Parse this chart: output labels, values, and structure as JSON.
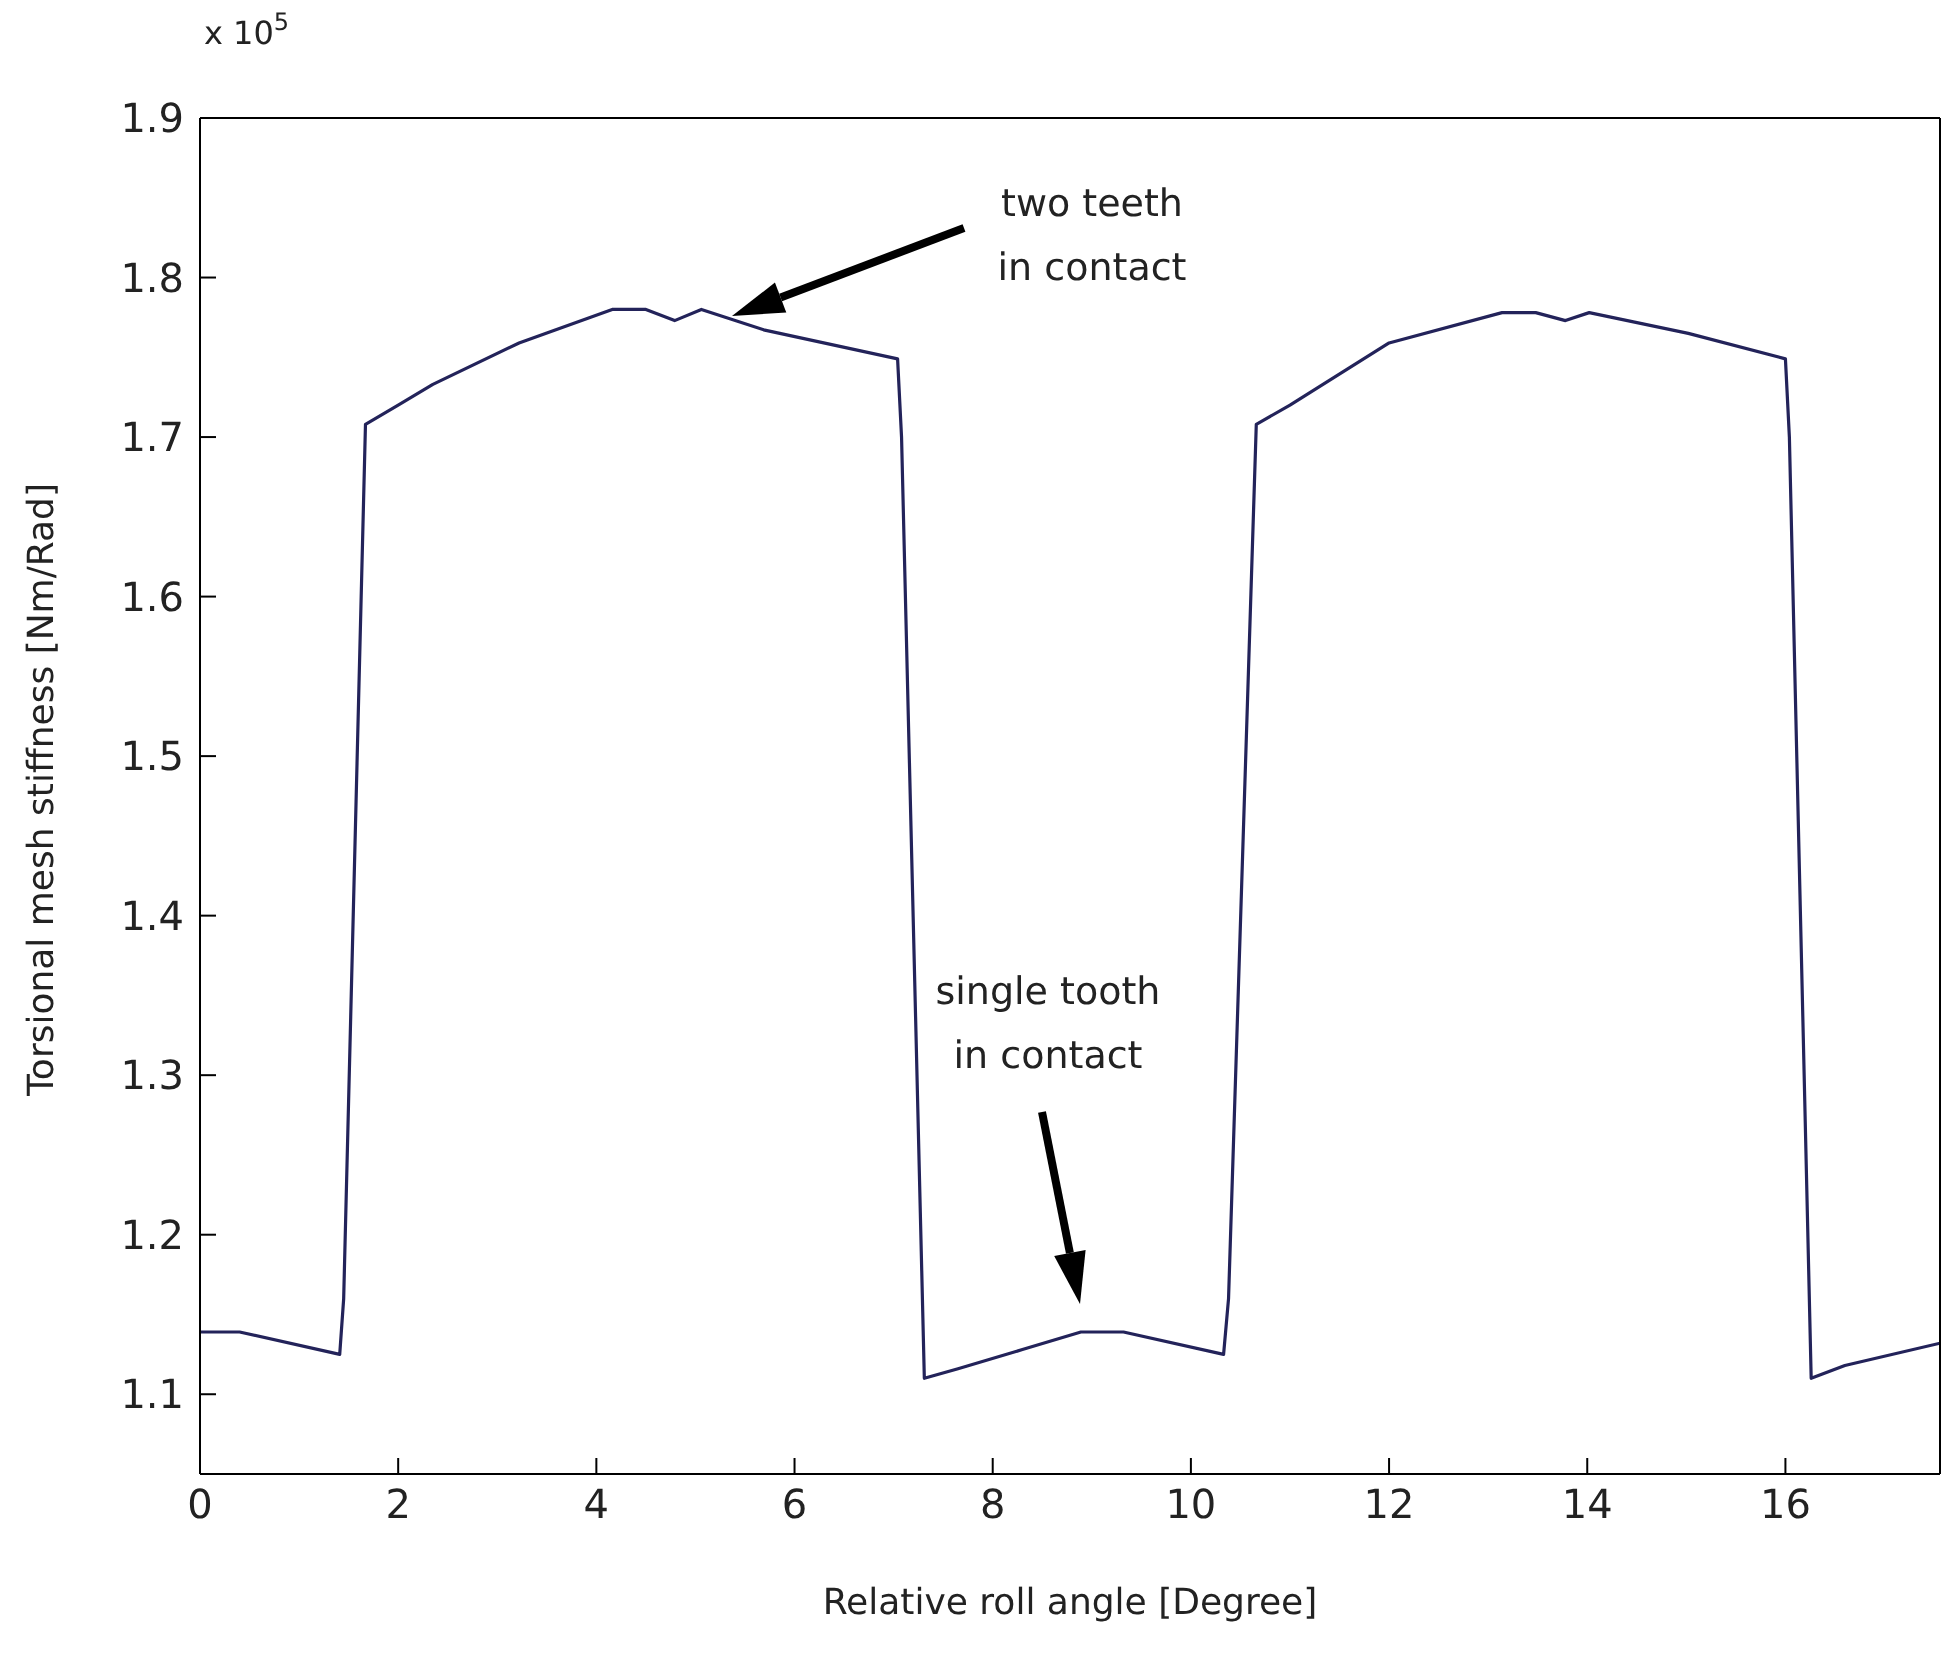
{
  "chart_data": {
    "type": "line",
    "xlabel": "Relative roll angle [Degree]",
    "ylabel": "Torsional mesh stiffness [Nm/Rad]",
    "series": [
      {
        "color": "#23235a",
        "x": [
          0,
          0.4,
          1.41,
          1.45,
          1.67,
          2.0,
          2.35,
          3.22,
          4.16,
          4.5,
          4.79,
          5.06,
          5.7,
          7.04,
          7.08,
          7.31,
          7.65,
          8.3,
          8.89,
          9.32,
          10.33,
          10.38,
          10.66,
          11.0,
          12.0,
          13.14,
          13.48,
          13.78,
          14.02,
          15.02,
          16.0,
          16.04,
          16.26,
          16.6,
          17.56
        ],
        "values": [
          1.139,
          1.139,
          1.125,
          1.16,
          1.708,
          1.72,
          1.733,
          1.759,
          1.78,
          1.78,
          1.773,
          1.78,
          1.767,
          1.749,
          1.7,
          1.11,
          1.116,
          1.128,
          1.139,
          1.139,
          1.125,
          1.16,
          1.708,
          1.72,
          1.759,
          1.778,
          1.778,
          1.773,
          1.778,
          1.765,
          1.749,
          1.7,
          1.11,
          1.118,
          1.132
        ]
      }
    ],
    "xlim": [
      0,
      17.56
    ],
    "xticks": [
      0,
      2,
      4,
      6,
      8,
      10,
      12,
      14,
      16
    ],
    "ylim": [
      1.05,
      1.9
    ],
    "yticks": [
      1.1,
      1.2,
      1.3,
      1.4,
      1.5,
      1.6,
      1.7,
      1.8,
      1.9
    ],
    "legend": false,
    "marker": "none",
    "line_style": "solid",
    "annotations": [
      "x 10$^{5}$",
      "two teeth\nin contact",
      "single tooth\nin contact"
    ]
  }
}
